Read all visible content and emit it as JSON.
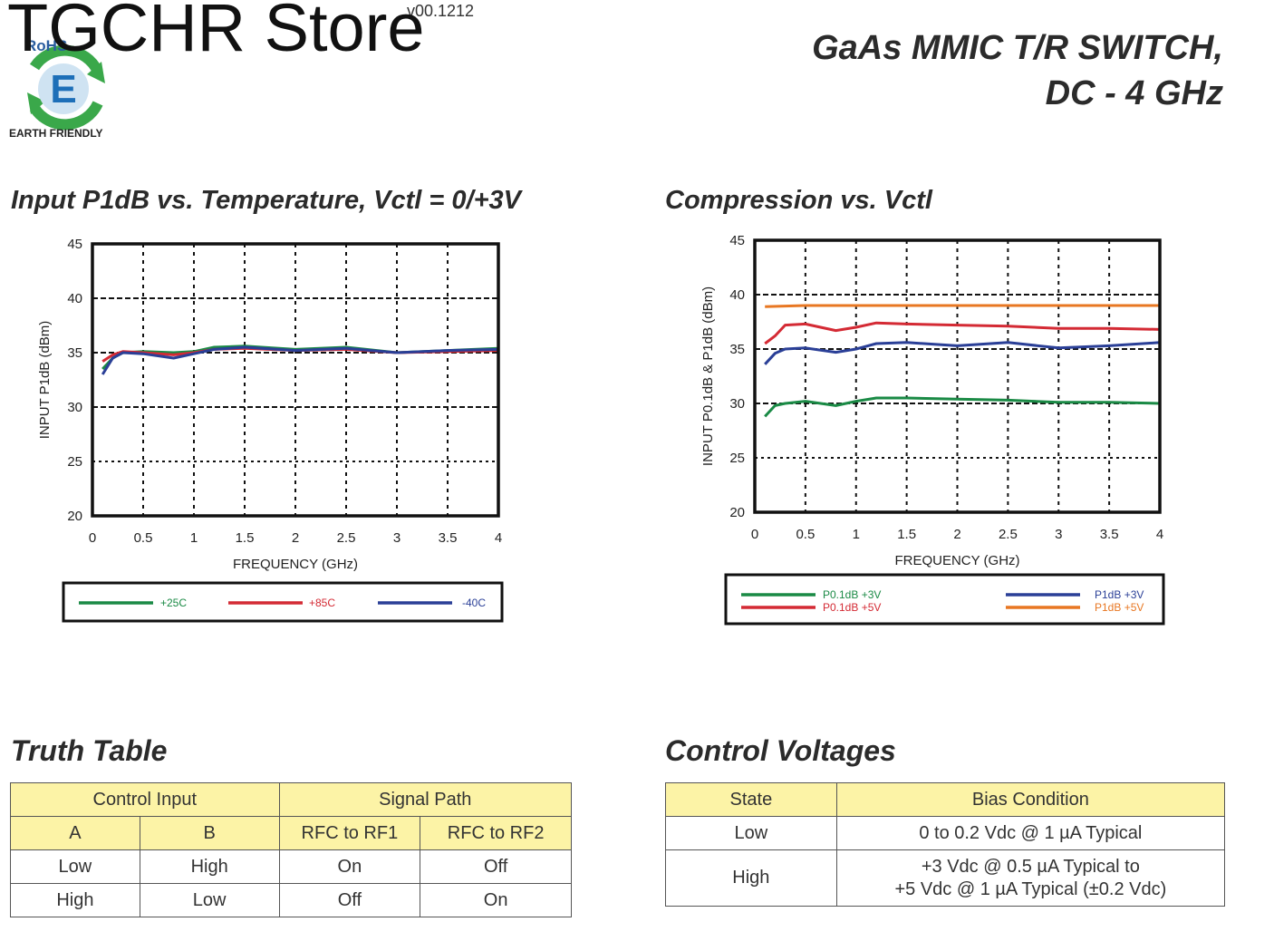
{
  "header": {
    "store": "TGCHR Store",
    "version": "v00.1212",
    "logo_text": "RoHS",
    "logo_letter": "E",
    "logo_caption": "EARTH FRIENDLY",
    "title_line1": "GaAs MMIC T/R SWITCH,",
    "title_line2": "DC - 4 GHz"
  },
  "chart_data": [
    {
      "type": "line",
      "title": "Input P1dB vs. Temperature, Vctl = 0/+3V",
      "xlabel": "FREQUENCY (GHz)",
      "ylabel": "INPUT P1dB (dBm)",
      "xlim": [
        0,
        4
      ],
      "ylim": [
        20,
        45
      ],
      "xticks": [
        "0",
        "0.5",
        "1",
        "1.5",
        "2",
        "2.5",
        "3",
        "3.5",
        "4"
      ],
      "yticks": [
        "20",
        "25",
        "30",
        "35",
        "40",
        "45"
      ],
      "grid": true,
      "legend": "below",
      "series": [
        {
          "name": "+25C",
          "color": "#1a8a45",
          "x": [
            0.1,
            0.2,
            0.3,
            0.5,
            0.8,
            1.0,
            1.2,
            1.5,
            2.0,
            2.5,
            3.0,
            3.5,
            4.0
          ],
          "y": [
            33.5,
            34.5,
            35.0,
            35.1,
            35.0,
            35.1,
            35.5,
            35.6,
            35.3,
            35.5,
            35.0,
            35.2,
            35.4
          ]
        },
        {
          "name": "+85C",
          "color": "#d42a34",
          "x": [
            0.1,
            0.2,
            0.3,
            0.5,
            0.8,
            1.0,
            1.2,
            1.5,
            2.0,
            2.5,
            3.0,
            3.5,
            4.0
          ],
          "y": [
            34.2,
            34.8,
            35.1,
            35.0,
            34.8,
            35.0,
            35.3,
            35.4,
            35.2,
            35.3,
            35.0,
            35.1,
            35.2
          ]
        },
        {
          "name": "-40C",
          "color": "#2a3f97",
          "x": [
            0.1,
            0.2,
            0.3,
            0.5,
            0.8,
            1.0,
            1.2,
            1.5,
            2.0,
            2.5,
            3.0,
            3.5,
            4.0
          ],
          "y": [
            33.0,
            34.5,
            35.0,
            34.9,
            34.5,
            34.9,
            35.3,
            35.5,
            35.2,
            35.4,
            35.0,
            35.2,
            35.3
          ]
        }
      ]
    },
    {
      "type": "line",
      "title": "Compression vs. Vctl",
      "xlabel": "FREQUENCY (GHz)",
      "ylabel": "INPUT P0.1dB  & P1dB (dBm)",
      "xlim": [
        0,
        4
      ],
      "ylim": [
        20,
        45
      ],
      "xticks": [
        "0",
        "0.5",
        "1",
        "1.5",
        "2",
        "2.5",
        "3",
        "3.5",
        "4"
      ],
      "yticks": [
        "20",
        "25",
        "30",
        "35",
        "40",
        "45"
      ],
      "grid": true,
      "legend": "below",
      "series": [
        {
          "name": "P0.1dB +3V",
          "color": "#1a8a45",
          "x": [
            0.1,
            0.2,
            0.3,
            0.5,
            0.8,
            1.0,
            1.2,
            1.5,
            2.0,
            2.5,
            3.0,
            3.5,
            4.0
          ],
          "y": [
            28.8,
            29.8,
            30.0,
            30.2,
            29.8,
            30.2,
            30.5,
            30.5,
            30.4,
            30.3,
            30.1,
            30.1,
            30.0
          ]
        },
        {
          "name": "P0.1dB +5V",
          "color": "#d42a34",
          "x": [
            0.1,
            0.2,
            0.3,
            0.5,
            0.8,
            1.0,
            1.2,
            1.5,
            2.0,
            2.5,
            3.0,
            3.5,
            4.0
          ],
          "y": [
            35.5,
            36.2,
            37.2,
            37.3,
            36.7,
            37.0,
            37.4,
            37.3,
            37.2,
            37.1,
            36.9,
            36.9,
            36.8
          ]
        },
        {
          "name": "P1dB +3V",
          "color": "#2a3f97",
          "x": [
            0.1,
            0.2,
            0.3,
            0.5,
            0.8,
            1.0,
            1.2,
            1.5,
            2.0,
            2.5,
            3.0,
            3.5,
            4.0
          ],
          "y": [
            33.6,
            34.6,
            35.0,
            35.1,
            34.7,
            35.0,
            35.5,
            35.6,
            35.3,
            35.6,
            35.1,
            35.3,
            35.6
          ]
        },
        {
          "name": "P1dB +5V",
          "color": "#e87722",
          "x": [
            0.1,
            0.5,
            1.0,
            1.5,
            2.0,
            2.5,
            3.0,
            3.5,
            4.0
          ],
          "y": [
            38.9,
            39.0,
            39.0,
            39.0,
            39.0,
            39.0,
            39.0,
            39.0,
            39.0
          ]
        }
      ]
    }
  ],
  "truth_table": {
    "title": "Truth Table",
    "group_headers": [
      "Control Input",
      "Signal Path"
    ],
    "columns": [
      "A",
      "B",
      "RFC to RF1",
      "RFC to RF2"
    ],
    "rows": [
      [
        "Low",
        "High",
        "On",
        "Off"
      ],
      [
        "High",
        "Low",
        "Off",
        "On"
      ]
    ]
  },
  "control_voltages": {
    "title": "Control Voltages",
    "columns": [
      "State",
      "Bias Condition"
    ],
    "rows": [
      {
        "state": "Low",
        "bias": [
          "0 to 0.2 Vdc @ 1 µA Typical"
        ]
      },
      {
        "state": "High",
        "bias": [
          "+3 Vdc @ 0.5 µA Typical to",
          "+5 Vdc @ 1 µA Typical (±0.2 Vdc)"
        ]
      }
    ]
  }
}
